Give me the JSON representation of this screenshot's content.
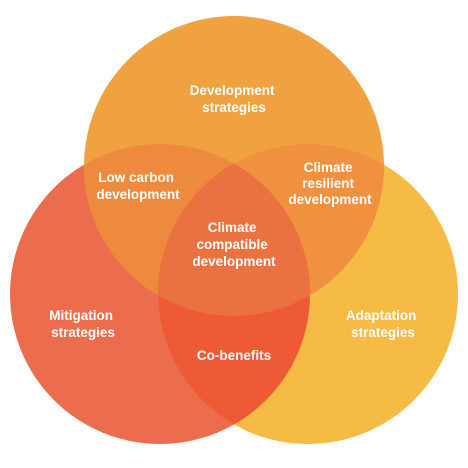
{
  "diagram": {
    "colors": {
      "development": "#F0A240",
      "mitigation": "#EC6C4E",
      "adaptation": "#F6BB45",
      "low_carbon": "#EE8A3E",
      "climate_resilient": "#EF913E",
      "co_benefits": "#EE5A36",
      "center": "#EA7140",
      "label": "#FFFFFF"
    },
    "regions": {
      "development_strategies": [
        "Development",
        "strategies"
      ],
      "mitigation_strategies": [
        "Mitigation",
        "strategies"
      ],
      "adaptation_strategies": [
        "Adaptation",
        "strategies"
      ],
      "low_carbon_development": [
        "Low carbon",
        "development"
      ],
      "climate_resilient_development": [
        "Climate",
        "resilient",
        "development"
      ],
      "co_benefits": [
        "Co-benefits"
      ],
      "climate_compatible_development": [
        "Climate",
        "compatible",
        "development"
      ]
    }
  }
}
